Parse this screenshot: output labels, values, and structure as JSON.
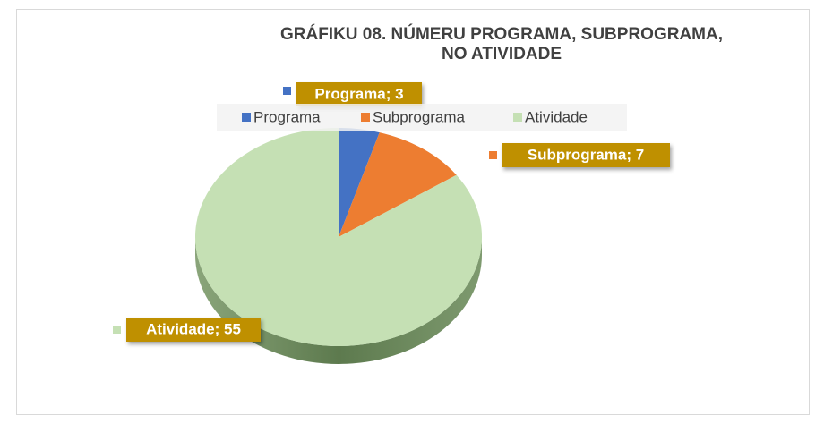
{
  "chart_data": {
    "type": "pie",
    "title": "GRÁFIKU 08. NÚMERU PROGRAMA, SUBPROGRAMA, NO ATIVIDADE",
    "categories": [
      "Programa",
      "Subprograma",
      "Atividade"
    ],
    "values": [
      3,
      7,
      55
    ],
    "value_labels": [
      "Programa; 3",
      "Subprograma; 7",
      "Atividade; 55"
    ],
    "colors": [
      "#4472c4",
      "#ed7d31",
      "#c5e0b4"
    ],
    "legend": "top"
  }
}
